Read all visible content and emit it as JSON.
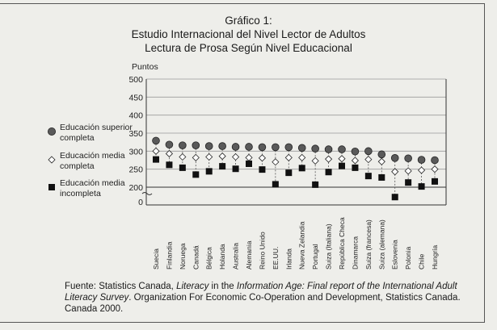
{
  "figure": {
    "title_line1": "Gráfico 1:",
    "title_line2": "Estudio Internacional del Nivel Lector de Adultos",
    "title_line3": "Lectura de Prosa Según Nivel Educacional"
  },
  "source": {
    "prefix": "Fuente: Statistics Canada, ",
    "italic_a": "Literacy",
    "middle": " in the ",
    "italic_b": "Information Age: Final report of the International Adult Literacy Survey",
    "suffix": ". Organization For Economic Co-Operation and Development, Statistics Canada. Canada 2000."
  },
  "chart_data": {
    "type": "scatter",
    "ylabel": "Puntos",
    "ylim": [
      0,
      500
    ],
    "yticks": [
      0,
      200,
      250,
      300,
      350,
      400,
      450,
      500
    ],
    "axis_break": true,
    "grid": true,
    "legend_position": "left",
    "categories": [
      "Suecia",
      "Finlandia",
      "Noruega",
      "Canadá",
      "Bélgica",
      "Holanda",
      "Australia",
      "Alemania",
      "Reino Unido",
      "EE.UU.",
      "Irlanda",
      "Nueva Zelandia",
      "Portugal",
      "Suiza (Italiana)",
      "República Checa",
      "Dinamarca",
      "Suiza (francesa)",
      "Suiza (alemana)",
      "Eslovenia",
      "Polonia",
      "Chile",
      "Hungría"
    ],
    "series": [
      {
        "name": "Educación superior completa",
        "marker": "circle",
        "color": "#5a5a5a",
        "values": [
          329,
          318,
          316,
          316,
          314,
          314,
          312,
          312,
          311,
          311,
          311,
          309,
          307,
          305,
          305,
          299,
          300,
          291,
          281,
          280,
          276,
          275
        ]
      },
      {
        "name": "Educación media completa",
        "marker": "diamond",
        "color": "#ffffff",
        "values": [
          300,
          293,
          284,
          282,
          284,
          286,
          284,
          282,
          281,
          270,
          282,
          282,
          273,
          278,
          279,
          274,
          277,
          271,
          243,
          245,
          247,
          250
        ]
      },
      {
        "name": "Educación media incompleta",
        "marker": "square",
        "color": "#111111",
        "values": [
          277,
          262,
          254,
          235,
          244,
          258,
          251,
          265,
          249,
          208,
          240,
          253,
          207,
          242,
          259,
          254,
          231,
          227,
          195,
          213,
          202,
          216
        ]
      }
    ]
  }
}
